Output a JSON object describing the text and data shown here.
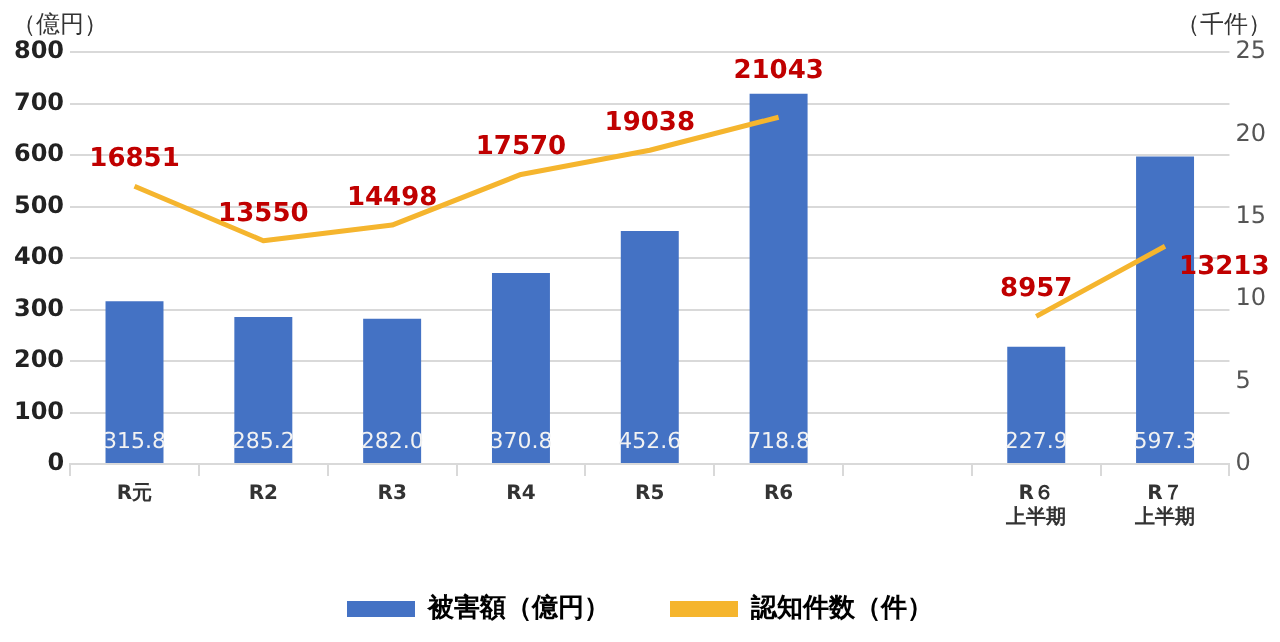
{
  "chart_data": {
    "type": "bar",
    "ylabel": "（億円）",
    "y2label": "（千件）",
    "categories": [
      "R元",
      "R2",
      "R3",
      "R4",
      "R5",
      "R6",
      null,
      "R６上半期",
      "R７上半期"
    ],
    "series": [
      {
        "name": "被害額（億円）",
        "color": "#4472c4",
        "values": [
          315.8,
          285.2,
          282.0,
          370.8,
          452.6,
          718.8,
          null,
          227.9,
          597.3
        ],
        "value_labels": [
          "315.8",
          "285.2",
          "282.0",
          "370.8",
          "452.6",
          "718.8",
          null,
          "227.9",
          "597.3"
        ]
      },
      {
        "name": "認知件数（件）",
        "type": "line",
        "axis": "y2",
        "color": "#f5b52e",
        "values": [
          16.851,
          13.55,
          14.498,
          17.57,
          19.038,
          21.043,
          null,
          8.957,
          13.213
        ]
      }
    ],
    "ylim": [
      0,
      800
    ],
    "yticks": [
      0,
      100,
      200,
      300,
      400,
      500,
      600,
      700,
      800
    ],
    "y2lim": [
      0,
      25
    ],
    "y2ticks": [
      0,
      5,
      10,
      15,
      20,
      25
    ],
    "annotations": [
      "16851",
      "13550",
      "14498",
      "17570",
      "19038",
      "21043",
      "8957",
      "13213"
    ],
    "grid": "y",
    "legend": "bottom",
    "marker": "none",
    "line_style": "solid"
  }
}
